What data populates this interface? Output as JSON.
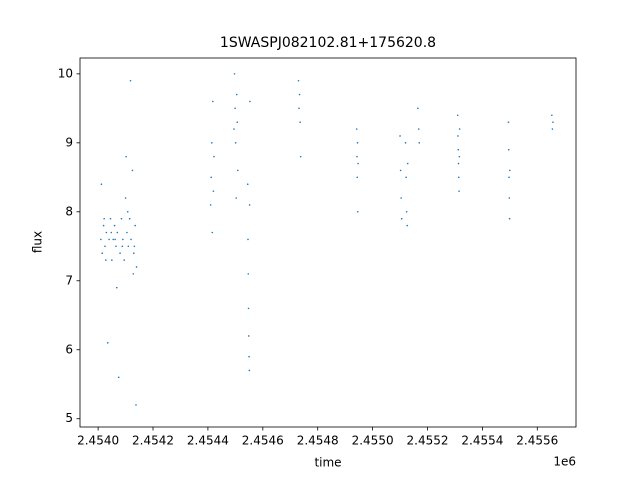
{
  "chart_data": {
    "type": "scatter",
    "title": "1SWASPJ082102.81+175620.8",
    "x_label": "time",
    "y_label": "flux",
    "x_offset_label": "1e6",
    "color": "#1f77b4",
    "xlim": [
      2453934,
      2455741
    ],
    "ylim": [
      4.88,
      10.23
    ],
    "xticks": [
      {
        "value": 2454000,
        "label": "2.4540"
      },
      {
        "value": 2454200,
        "label": "2.4542"
      },
      {
        "value": 2454400,
        "label": "2.4544"
      },
      {
        "value": 2454600,
        "label": "2.4546"
      },
      {
        "value": 2454800,
        "label": "2.4548"
      },
      {
        "value": 2455000,
        "label": "2.4550"
      },
      {
        "value": 2455200,
        "label": "2.4552"
      },
      {
        "value": 2455400,
        "label": "2.4554"
      },
      {
        "value": 2455600,
        "label": "2.4556"
      }
    ],
    "yticks": [
      5,
      6,
      7,
      8,
      9,
      10
    ],
    "x": [
      2454010,
      2454015,
      2454020,
      2454025,
      2454030,
      2454035,
      2454040,
      2454045,
      2454050,
      2454055,
      2454060,
      2454065,
      2454070,
      2454075,
      2454080,
      2454085,
      2454090,
      2454095,
      2454100,
      2454105,
      2454110,
      2454115,
      2454120,
      2454125,
      2454130,
      2454135,
      2454140,
      2454012,
      2454028,
      2454048,
      2454068,
      2454088,
      2454108,
      2454118,
      2454128,
      2454138,
      2454022,
      2454062,
      2454102,
      2454132,
      2454410,
      2454412,
      2454414,
      2454416,
      2454418,
      2454420,
      2454422,
      2454495,
      2454497,
      2454499,
      2454501,
      2454503,
      2454505,
      2454507,
      2454509,
      2454545,
      2454546,
      2454547,
      2454548,
      2454549,
      2454550,
      2454551,
      2454552,
      2454553,
      2454730,
      2454732,
      2454734,
      2454736,
      2454738,
      2454942,
      2454943,
      2454944,
      2454945,
      2454946,
      2454947,
      2455100,
      2455102,
      2455104,
      2455106,
      2455120,
      2455122,
      2455124,
      2455126,
      2455128,
      2455165,
      2455168,
      2455170,
      2455310,
      2455311,
      2455312,
      2455313,
      2455314,
      2455315,
      2455316,
      2455317,
      2455495,
      2455496,
      2455497,
      2455498,
      2455499,
      2455500,
      2455653,
      2455655,
      2455657
    ],
    "y": [
      7.6,
      7.4,
      7.8,
      7.5,
      7.7,
      6.1,
      7.6,
      7.9,
      7.3,
      7.6,
      7.8,
      7.5,
      7.7,
      5.6,
      7.4,
      7.9,
      7.6,
      7.3,
      8.2,
      7.7,
      7.5,
      7.9,
      7.6,
      8.6,
      7.4,
      7.8,
      7.2,
      8.4,
      7.3,
      7.7,
      6.9,
      7.5,
      8.0,
      9.9,
      7.1,
      5.2,
      7.9,
      7.6,
      8.8,
      7.5,
      8.1,
      8.5,
      9.0,
      7.7,
      9.6,
      8.3,
      8.8,
      9.2,
      10.0,
      9.5,
      9.0,
      8.2,
      9.7,
      9.3,
      8.6,
      8.4,
      7.6,
      7.1,
      6.6,
      6.2,
      5.9,
      5.7,
      8.1,
      9.6,
      9.9,
      9.5,
      9.7,
      9.3,
      8.8,
      9.2,
      8.8,
      8.5,
      9.0,
      8.0,
      8.7,
      9.1,
      8.6,
      8.2,
      7.9,
      9.0,
      8.5,
      8.0,
      7.8,
      8.7,
      9.5,
      9.2,
      9.0,
      9.4,
      9.1,
      8.9,
      8.7,
      8.5,
      8.3,
      8.8,
      9.2,
      9.3,
      8.9,
      8.5,
      8.2,
      7.9,
      8.6,
      9.4,
      9.2,
      9.3
    ]
  }
}
